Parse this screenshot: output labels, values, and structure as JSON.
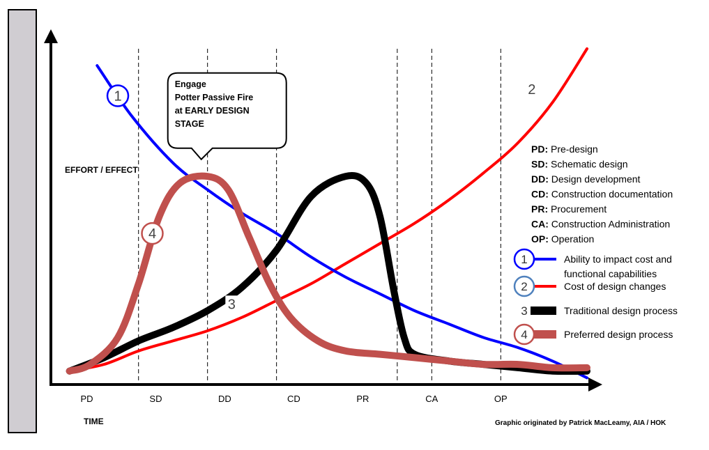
{
  "chart_data": {
    "type": "line",
    "title": "",
    "ylabel": "EFFORT / EFFECT",
    "xlabel": "TIME",
    "categories": [
      "PD",
      "SD",
      "DD",
      "CD",
      "PR",
      "CA",
      "OP"
    ],
    "phase_boundaries": [
      1,
      2,
      3,
      4.75,
      5.25,
      6.25
    ],
    "xlim": [
      -0.25,
      7.5
    ],
    "ylim": [
      0,
      100
    ],
    "grid": false,
    "legend_position": "right",
    "series": [
      {
        "id": 1,
        "name": "Ability to impact cost and functional capabilities",
        "color": "#0000ff",
        "x": [
          0.4,
          0.9,
          1.5,
          2.0,
          2.5,
          3.0,
          3.5,
          4.0,
          4.5,
          5.0,
          5.5,
          6.0,
          6.5,
          7.0,
          7.5
        ],
        "y": [
          95,
          80,
          66,
          58,
          51,
          45,
          38,
          32,
          27,
          22,
          18,
          14,
          11,
          7,
          2
        ]
      },
      {
        "id": 2,
        "name": "Cost of design changes",
        "color": "#ff0000",
        "x": [
          0.0,
          0.5,
          1.0,
          1.5,
          2.0,
          2.5,
          3.0,
          3.5,
          4.0,
          4.5,
          5.0,
          5.5,
          6.0,
          6.5,
          7.0,
          7.5
        ],
        "y": [
          4,
          6,
          10,
          13,
          16,
          20,
          25,
          30,
          36,
          42,
          48,
          55,
          63,
          72,
          84,
          100
        ]
      },
      {
        "id": 3,
        "name": "Traditional design process",
        "color": "#000000",
        "x": [
          0.0,
          0.5,
          1.0,
          1.5,
          2.0,
          2.5,
          3.0,
          3.5,
          4.0,
          4.3,
          4.5,
          4.7,
          4.85,
          5.0,
          5.5,
          6.0,
          6.5,
          7.0,
          7.5
        ],
        "y": [
          4,
          8,
          13,
          17,
          22,
          29,
          40,
          56,
          62,
          60,
          50,
          28,
          14,
          9,
          7,
          6,
          5,
          4,
          4
        ]
      },
      {
        "id": 4,
        "name": "Preferred design process",
        "color": "#c0504d",
        "x": [
          0.0,
          0.3,
          0.7,
          1.0,
          1.3,
          1.6,
          2.0,
          2.3,
          2.6,
          2.9,
          3.2,
          3.6,
          4.0,
          4.5,
          5.0,
          5.5,
          6.0,
          6.5,
          7.0,
          7.5
        ],
        "y": [
          4,
          6,
          14,
          30,
          50,
          60,
          62,
          58,
          44,
          30,
          20,
          13,
          10,
          9,
          8,
          7,
          6,
          6,
          5,
          5
        ]
      }
    ],
    "curve_labels": [
      {
        "text": "1",
        "series": 1,
        "x": 0.7,
        "y": 86,
        "circled": true,
        "color": "#0000ff"
      },
      {
        "text": "2",
        "series": 2,
        "x": 6.7,
        "y": 88,
        "circled": false,
        "color": "#ff0000"
      },
      {
        "text": "3",
        "series": 3,
        "x": 2.35,
        "y": 24,
        "circled": false,
        "color": "#000000"
      },
      {
        "text": "4",
        "series": 4,
        "x": 1.2,
        "y": 45,
        "circled": true,
        "color": "#c0504d"
      }
    ],
    "callout": {
      "lines": [
        "Engage",
        "Potter Passive Fire",
        "at EARLY DESIGN",
        "STAGE"
      ],
      "x": 1.0,
      "y": 82
    },
    "phase_legend": [
      {
        "abbr": "PD:",
        "text": " Pre-design"
      },
      {
        "abbr": "SD:",
        "text": " Schematic design"
      },
      {
        "abbr": "DD:",
        "text": " Design development"
      },
      {
        "abbr": "CD:",
        "text": " Construction documentation"
      },
      {
        "abbr": "PR:",
        "text": " Procurement"
      },
      {
        "abbr": "CA:",
        "text": " Construction Administration"
      },
      {
        "abbr": "OP:",
        "text": " Operation"
      }
    ],
    "series_legend": [
      {
        "number": "1",
        "lines": [
          "Ability to impact cost and",
          "functional capabilities"
        ],
        "ring_color": "#0000ff",
        "line_color": "#0000ff",
        "circled": true
      },
      {
        "number": "2",
        "lines": [
          "Cost of design changes"
        ],
        "ring_color": "#4f81bd",
        "line_color": "#ff0000",
        "circled": true
      },
      {
        "number": "3",
        "lines": [
          "Traditional design process"
        ],
        "ring_color": "#000000",
        "line_color": "#000000",
        "circled": false
      },
      {
        "number": "4",
        "lines": [
          "Preferred design process"
        ],
        "ring_color": "#c0504d",
        "line_color": "#c0504d",
        "circled": true
      }
    ],
    "credit": "Graphic originated by Patrick MacLeamy, AIA / HOK"
  },
  "colors": {
    "sidebar": "#d0cdd2",
    "axis": "#000000"
  }
}
